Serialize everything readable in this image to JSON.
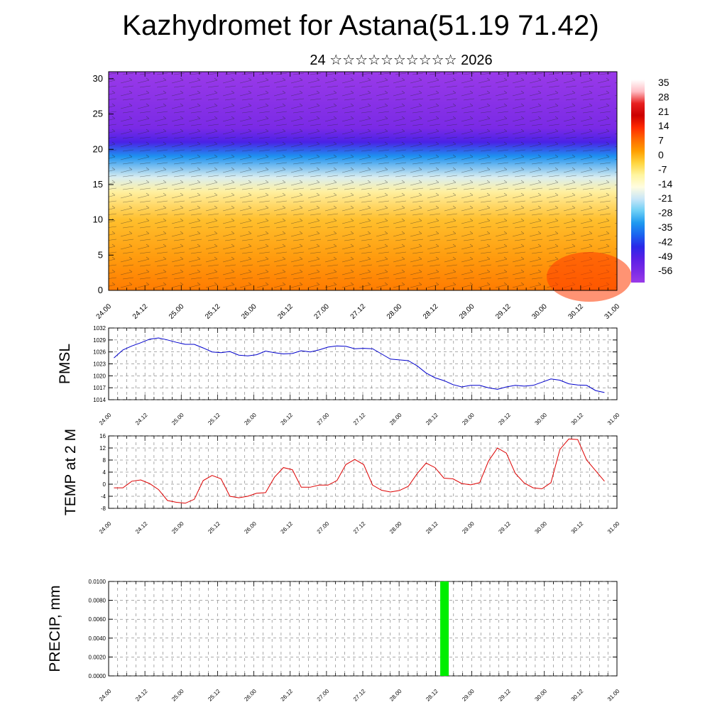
{
  "header": {
    "title": "Kazhydromet for Astana(51.19 71.42)",
    "subtitle": "24 ☆☆☆☆☆☆☆☆☆☆ 2026"
  },
  "colors": {
    "frame": "#000000",
    "pmsl_line": "#0000cc",
    "temp_line": "#dd0000",
    "precip_bar": "#00ee00"
  },
  "chart_data": [
    {
      "type": "heatmap",
      "name": "vertical-profile",
      "title": "",
      "x_ticks": [
        "24.00",
        "24.12",
        "25.00",
        "25.12",
        "26.00",
        "26.12",
        "27.00",
        "27.12",
        "28.00",
        "28.12",
        "29.00",
        "29.12",
        "30.00",
        "30.12",
        "31.00"
      ],
      "ylim": [
        0,
        31
      ],
      "y_ticks": [
        "0",
        "5",
        "10",
        "15",
        "20",
        "25",
        "30"
      ],
      "colorbar_labels": [
        "35",
        "28",
        "21",
        "14",
        "7",
        "0",
        "-7",
        "-14",
        "-21",
        "-28",
        "-35",
        "-42",
        "-49",
        "-56"
      ],
      "colorbar_colors": [
        "#ffffff",
        "#ffbdc4",
        "#e82020",
        "#cc0000",
        "#ff2a00",
        "#ff6a00",
        "#ffa000",
        "#ffd640",
        "#fff5a0",
        "#fffde0",
        "#c8e6f8",
        "#6ccff6",
        "#1e9af0",
        "#1a64f0",
        "#2a28e8",
        "#5a20e6",
        "#7a2ae6",
        "#9a3ae8"
      ],
      "bands": [
        {
          "level": 0,
          "value": 6
        },
        {
          "level": 5,
          "value": 2
        },
        {
          "level": 10,
          "value": -2
        },
        {
          "level": 14,
          "value": -9
        },
        {
          "level": 16,
          "value": -18
        },
        {
          "level": 19,
          "value": -36
        },
        {
          "level": 21,
          "value": -50
        },
        {
          "level": 23,
          "value": -56
        },
        {
          "level": 31,
          "value": -60
        }
      ]
    },
    {
      "type": "line",
      "name": "pmsl",
      "ylabel": "PMSL",
      "ylim": [
        1014,
        1032
      ],
      "y_ticks": [
        "1014",
        "1017",
        "1020",
        "1023",
        "1026",
        "1029",
        "1032"
      ],
      "x_ticks": [
        "24.00",
        "24.12",
        "25.00",
        "25.12",
        "26.00",
        "26.12",
        "27.00",
        "27.12",
        "28.00",
        "28.12",
        "29.00",
        "29.12",
        "30.00",
        "30.12",
        "31.00"
      ],
      "x": [
        0,
        1,
        2,
        3,
        4,
        5,
        6,
        7,
        8,
        9,
        10,
        11,
        12,
        13,
        14,
        15,
        16,
        17,
        18,
        19,
        20,
        21,
        22,
        23,
        24,
        25,
        26,
        27,
        28,
        29,
        30,
        31,
        32,
        33,
        34,
        35,
        36,
        37,
        38,
        39,
        40,
        41,
        42,
        43,
        44,
        45,
        46,
        47,
        48,
        49,
        50,
        51,
        52,
        53,
        54,
        55
      ],
      "values": [
        1024.5,
        1026.5,
        1027.5,
        1028.3,
        1029.2,
        1029.5,
        1029.0,
        1028.4,
        1027.9,
        1027.9,
        1027.0,
        1026.0,
        1025.8,
        1026.1,
        1025.2,
        1025.0,
        1025.3,
        1026.2,
        1025.8,
        1025.5,
        1025.6,
        1026.3,
        1026.0,
        1026.5,
        1027.2,
        1027.5,
        1027.4,
        1026.8,
        1026.9,
        1026.8,
        1025.5,
        1024.2,
        1024.0,
        1023.8,
        1022.5,
        1020.7,
        1019.5,
        1018.8,
        1017.8,
        1017.2,
        1017.6,
        1017.6,
        1017.0,
        1016.6,
        1017.2,
        1017.6,
        1017.4,
        1017.6,
        1018.4,
        1019.2,
        1018.9,
        1018.0,
        1017.7,
        1017.6,
        1016.3,
        1015.8
      ]
    },
    {
      "type": "line",
      "name": "temp-2m",
      "ylabel": "TEMP at 2 M",
      "ylim": [
        -8,
        16
      ],
      "y_ticks": [
        "-8",
        "-4",
        "0",
        "4",
        "8",
        "12",
        "16"
      ],
      "x_ticks": [
        "24.00",
        "24.12",
        "25.00",
        "25.12",
        "26.00",
        "26.12",
        "27.00",
        "27.12",
        "28.00",
        "28.12",
        "29.00",
        "29.12",
        "30.00",
        "30.12",
        "31.00"
      ],
      "x": [
        0,
        1,
        2,
        3,
        4,
        5,
        6,
        7,
        8,
        9,
        10,
        11,
        12,
        13,
        14,
        15,
        16,
        17,
        18,
        19,
        20,
        21,
        22,
        23,
        24,
        25,
        26,
        27,
        28,
        29,
        30,
        31,
        32,
        33,
        34,
        35,
        36,
        37,
        38,
        39,
        40,
        41,
        42,
        43,
        44,
        45,
        46,
        47,
        48,
        49,
        50,
        51,
        52,
        53,
        54,
        55
      ],
      "values": [
        -1.2,
        -1.2,
        1.0,
        1.4,
        0.2,
        -1.8,
        -5.4,
        -6.0,
        -6.3,
        -5.0,
        1.2,
        2.9,
        1.8,
        -4.0,
        -4.5,
        -4.0,
        -3.0,
        -2.8,
        2.3,
        5.5,
        4.8,
        -1.0,
        -1.0,
        -0.3,
        -0.3,
        1.2,
        6.5,
        8.2,
        6.5,
        -0.3,
        -2.0,
        -2.6,
        -2.1,
        -0.7,
        3.5,
        7.0,
        5.5,
        2.0,
        1.8,
        0.2,
        -0.2,
        0.5,
        7.7,
        12.0,
        10.3,
        3.6,
        0.4,
        -1.2,
        -1.5,
        0.5,
        11.5,
        15.0,
        14.8,
        8.0,
        4.5,
        1.0
      ]
    },
    {
      "type": "bar",
      "name": "precip",
      "ylabel": "PRECIP, mm",
      "ylim": [
        0,
        0.01
      ],
      "y_ticks": [
        "0.0000",
        "0.0020",
        "0.0040",
        "0.0060",
        "0.0080",
        "0.0100"
      ],
      "x_ticks": [
        "24.00",
        "24.12",
        "25.00",
        "25.12",
        "26.00",
        "26.12",
        "27.00",
        "27.12",
        "28.00",
        "28.12",
        "29.00",
        "29.12",
        "30.00",
        "30.12",
        "31.00"
      ],
      "bars": [
        {
          "x": 37.0,
          "value": 0.01
        }
      ]
    }
  ]
}
